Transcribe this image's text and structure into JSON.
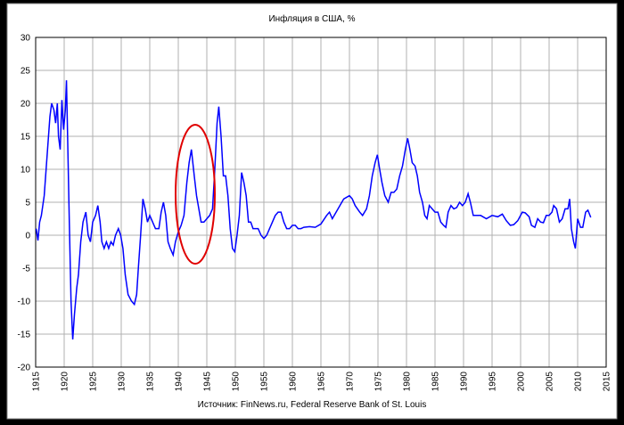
{
  "chart_data": {
    "type": "line",
    "title": "Инфляция в США, %",
    "x_label": "Источник: FinNews.ru, Federal Reserve Bank of St. Louis",
    "color": "#0000ff",
    "grid": true,
    "xlim": [
      1915,
      2015
    ],
    "xticks": [
      1915,
      1920,
      1925,
      1930,
      1935,
      1940,
      1945,
      1950,
      1955,
      1960,
      1965,
      1970,
      1975,
      1980,
      1985,
      1990,
      1995,
      2000,
      2005,
      2010,
      2015
    ],
    "ylim": [
      -20,
      30
    ],
    "yticks": [
      -20,
      -15,
      -10,
      -5,
      0,
      5,
      10,
      15,
      20,
      25,
      30
    ],
    "x": [
      1915.1,
      1915.4,
      1915.7,
      1916.0,
      1916.5,
      1917.0,
      1917.5,
      1917.8,
      1918.2,
      1918.5,
      1918.8,
      1919.0,
      1919.3,
      1919.6,
      1919.9,
      1920.2,
      1920.4,
      1920.6,
      1920.9,
      1921.2,
      1921.5,
      1921.8,
      1922.2,
      1922.5,
      1922.9,
      1923.3,
      1923.8,
      1924.2,
      1924.6,
      1925.0,
      1925.5,
      1925.9,
      1926.3,
      1926.6,
      1927.0,
      1927.4,
      1927.8,
      1928.2,
      1928.6,
      1929.0,
      1929.5,
      1929.9,
      1930.3,
      1930.7,
      1931.2,
      1931.8,
      1932.3,
      1932.7,
      1933.0,
      1933.4,
      1933.8,
      1934.2,
      1934.6,
      1935.0,
      1935.5,
      1936.0,
      1936.6,
      1937.0,
      1937.4,
      1937.8,
      1938.2,
      1938.6,
      1939.1,
      1939.5,
      1940.0,
      1940.5,
      1941.0,
      1941.5,
      1941.9,
      1942.3,
      1942.8,
      1943.2,
      1943.6,
      1944.0,
      1944.5,
      1945.0,
      1945.5,
      1946.0,
      1946.4,
      1946.8,
      1947.1,
      1947.5,
      1947.9,
      1948.3,
      1948.7,
      1949.1,
      1949.5,
      1949.9,
      1950.3,
      1950.7,
      1951.1,
      1951.5,
      1951.9,
      1952.3,
      1952.7,
      1953.1,
      1953.6,
      1954.0,
      1954.5,
      1955.0,
      1955.5,
      1956.0,
      1956.5,
      1957.0,
      1957.5,
      1958.0,
      1958.5,
      1959.0,
      1959.5,
      1960.0,
      1960.5,
      1961.0,
      1961.5,
      1962.0,
      1963.0,
      1964.0,
      1965.0,
      1966.0,
      1966.5,
      1967.0,
      1968.0,
      1969.0,
      1970.0,
      1970.5,
      1971.0,
      1971.8,
      1972.3,
      1973.0,
      1973.5,
      1974.0,
      1974.5,
      1974.9,
      1975.3,
      1975.7,
      1976.2,
      1976.8,
      1977.3,
      1977.8,
      1978.3,
      1978.8,
      1979.3,
      1979.8,
      1980.2,
      1980.6,
      1981.0,
      1981.5,
      1981.9,
      1982.3,
      1982.8,
      1983.2,
      1983.6,
      1984.0,
      1984.5,
      1985.0,
      1985.5,
      1986.0,
      1986.5,
      1986.9,
      1987.3,
      1987.8,
      1988.3,
      1988.8,
      1989.3,
      1989.8,
      1990.3,
      1990.8,
      1991.2,
      1991.7,
      1992.2,
      1993.0,
      1994.0,
      1995.0,
      1996.0,
      1996.8,
      1997.5,
      1998.2,
      1998.8,
      1999.5,
      2000.3,
      2000.8,
      2001.5,
      2001.9,
      2002.5,
      2003.0,
      2003.5,
      2004.0,
      2004.5,
      2005.0,
      2005.5,
      2005.8,
      2006.3,
      2006.8,
      2007.3,
      2007.8,
      2008.3,
      2008.6,
      2008.9,
      2009.3,
      2009.6,
      2010.0,
      2010.5,
      2010.9,
      2011.4,
      2011.8,
      2012.3
    ],
    "values": [
      1,
      -0.8,
      2,
      3,
      6,
      12,
      18,
      20,
      19,
      17,
      20,
      15,
      13,
      20.5,
      16,
      19,
      23.5,
      15,
      2,
      -10,
      -15.8,
      -12,
      -8,
      -6,
      -1,
      2,
      3.5,
      0,
      -1,
      2,
      3,
      4.5,
      2,
      -1,
      -2,
      -1,
      -2,
      -1,
      -1.5,
      0,
      1,
      0,
      -2,
      -6,
      -9,
      -10,
      -10.5,
      -9,
      -5,
      0,
      5.5,
      4,
      2,
      3,
      2,
      1,
      1,
      3.5,
      5,
      3,
      -1,
      -2,
      -3,
      -1,
      0.5,
      1.5,
      3,
      8,
      11,
      13,
      9,
      6,
      4,
      2,
      2,
      2.5,
      3,
      4,
      10,
      17,
      19.5,
      15,
      9,
      9,
      6,
      1,
      -2,
      -2.5,
      0,
      3,
      9.5,
      8,
      6,
      2,
      2,
      1,
      1,
      1,
      0,
      -0.5,
      0,
      1,
      2,
      3,
      3.5,
      3.5,
      2,
      1,
      1,
      1.5,
      1.5,
      1,
      1,
      1.2,
      1.3,
      1.2,
      1.7,
      3,
      3.5,
      2.5,
      4,
      5.5,
      6,
      5.5,
      4.5,
      3.5,
      3,
      4,
      6,
      9,
      11,
      12.2,
      10,
      8,
      6,
      5,
      6.5,
      6.5,
      7,
      9,
      10.5,
      13,
      14.7,
      13,
      11,
      10.5,
      9,
      6.5,
      5,
      3,
      2.5,
      4.5,
      4,
      3.5,
      3.5,
      2,
      1.5,
      1.2,
      3.5,
      4.5,
      4,
      4.2,
      5,
      4.5,
      5,
      6.3,
      5,
      3,
      3,
      3,
      2.5,
      3,
      2.8,
      3.2,
      2.2,
      1.5,
      1.6,
      2.2,
      3.5,
      3.4,
      2.8,
      1.5,
      1.2,
      2.5,
      2,
      1.9,
      3,
      3,
      3.5,
      4.5,
      4,
      2,
      2.5,
      4,
      4,
      5.5,
      1,
      -1,
      -2,
      2.5,
      1.2,
      1.2,
      3.5,
      3.8,
      2.7
    ]
  }
}
